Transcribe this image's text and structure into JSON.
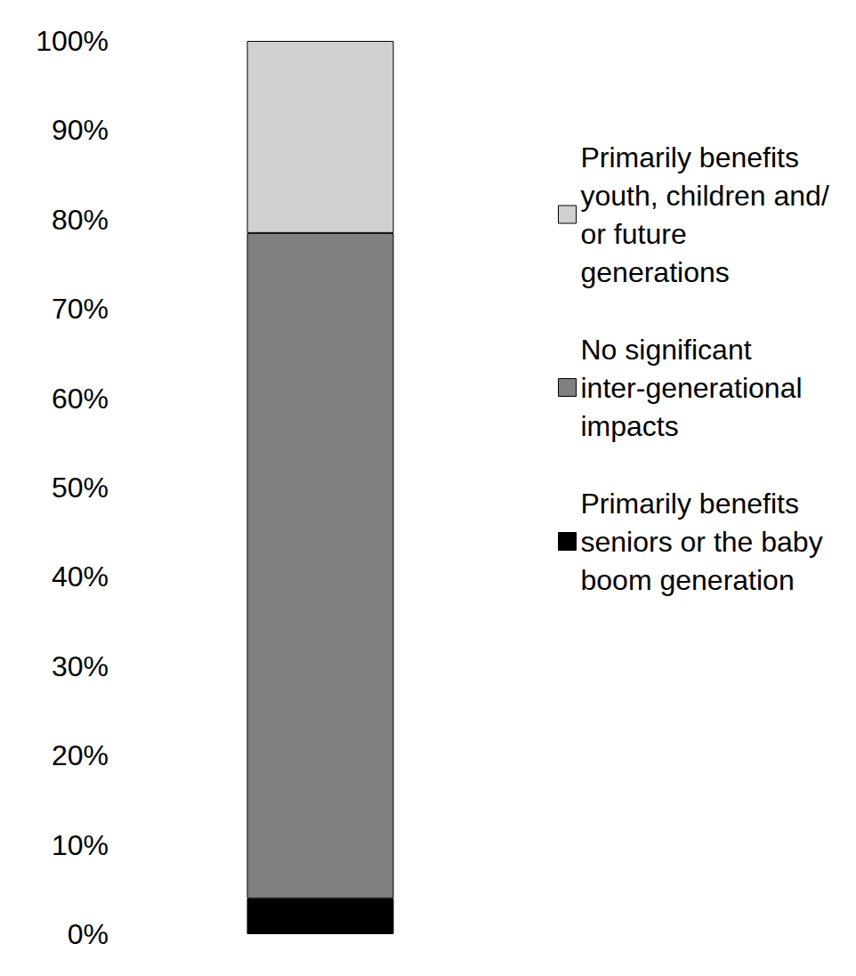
{
  "chart_data": {
    "type": "bar",
    "stacked": true,
    "categories": [
      null
    ],
    "series": [
      {
        "name": "Primarily benefits seniors or the baby boom generation",
        "color": "#000000",
        "values": [
          4
        ]
      },
      {
        "name": "No significant inter-generational impacts",
        "color": "#808080",
        "values": [
          74.5
        ]
      },
      {
        "name": "Primarily benefits youth, children and/or future generations",
        "color": "#d0d0d0",
        "values": [
          21.5
        ]
      }
    ],
    "ylim": [
      0,
      100
    ],
    "yticks": [
      {
        "value": 0,
        "label": "0%"
      },
      {
        "value": 10,
        "label": "10%"
      },
      {
        "value": 20,
        "label": "20%"
      },
      {
        "value": 30,
        "label": "30%"
      },
      {
        "value": 40,
        "label": "40%"
      },
      {
        "value": 50,
        "label": "50%"
      },
      {
        "value": 60,
        "label": "60%"
      },
      {
        "value": 70,
        "label": "70%"
      },
      {
        "value": 80,
        "label": "80%"
      },
      {
        "value": 90,
        "label": "90%"
      },
      {
        "value": 100,
        "label": "100%"
      }
    ],
    "grid": false,
    "legend": "right",
    "tick_labels": "y"
  }
}
